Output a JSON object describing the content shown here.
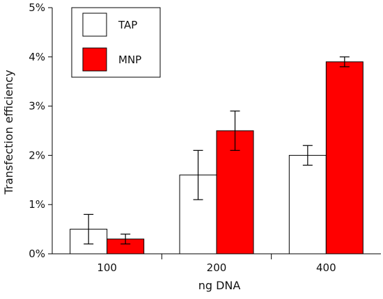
{
  "chart_data": {
    "type": "bar",
    "title": "",
    "xlabel": "ng DNA",
    "ylabel": "Transfection efficiency",
    "categories": [
      "100",
      "200",
      "400"
    ],
    "y_tick_labels": [
      "0%",
      "1%",
      "2%",
      "3%",
      "4%",
      "5%"
    ],
    "y_ticks": [
      0,
      1,
      2,
      3,
      4,
      5
    ],
    "ylim": [
      0,
      5
    ],
    "grid": false,
    "legend_position": "top-left",
    "series": [
      {
        "name": "TAP",
        "color": "#ffffff",
        "values": [
          0.5,
          1.6,
          2.0
        ],
        "error": [
          0.3,
          0.5,
          0.2
        ]
      },
      {
        "name": "MNP",
        "color": "#ff0000",
        "values": [
          0.3,
          2.5,
          3.9
        ],
        "error": [
          0.1,
          0.4,
          0.1
        ]
      }
    ]
  }
}
